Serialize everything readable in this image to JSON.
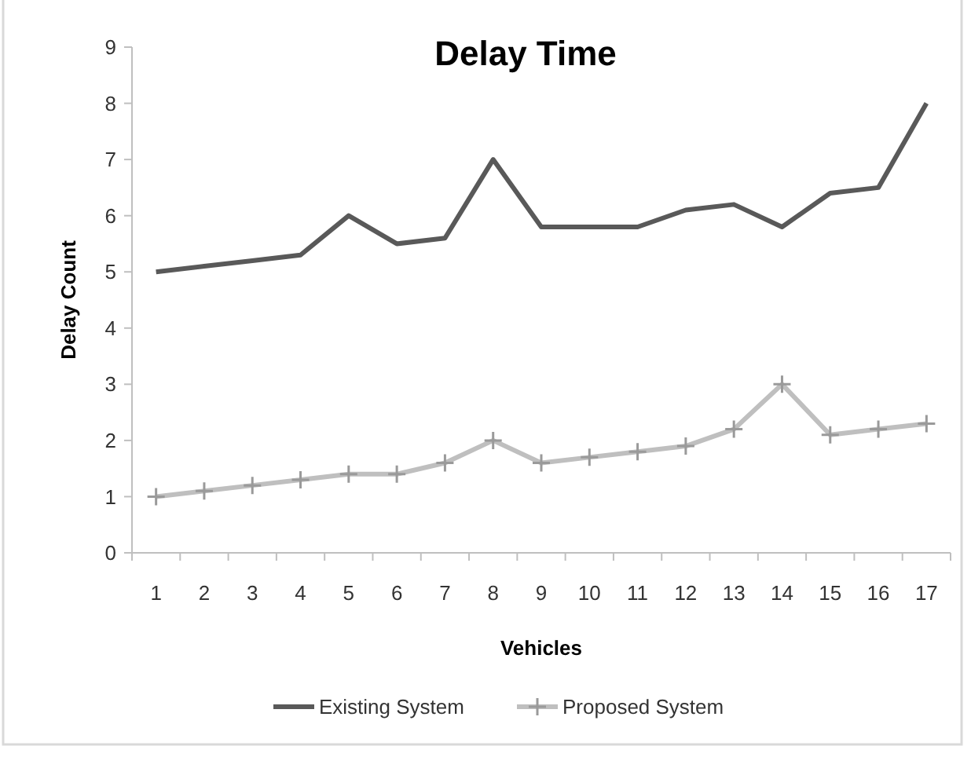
{
  "chart_data": {
    "type": "line",
    "title": "Delay Time",
    "xlabel": "Vehicles",
    "ylabel": "Delay Count",
    "categories": [
      "1",
      "2",
      "3",
      "4",
      "5",
      "6",
      "7",
      "8",
      "9",
      "10",
      "11",
      "12",
      "13",
      "14",
      "15",
      "16",
      "17"
    ],
    "series": [
      {
        "name": "Existing System",
        "color": "#595959",
        "marker": "none",
        "values": [
          5,
          5.1,
          5.2,
          5.3,
          6,
          5.5,
          5.6,
          7,
          5.8,
          5.8,
          5.8,
          6.1,
          6.2,
          5.8,
          6.4,
          6.5,
          8
        ]
      },
      {
        "name": "Proposed System",
        "color": "#bfbfbf",
        "marker": "cross",
        "values": [
          1,
          1.1,
          1.2,
          1.3,
          1.4,
          1.4,
          1.6,
          2,
          1.6,
          1.7,
          1.8,
          1.9,
          2.2,
          3,
          2.1,
          2.2,
          2.3
        ]
      }
    ],
    "ylim": [
      0,
      9
    ],
    "yticks": [
      0,
      1,
      2,
      3,
      4,
      5,
      6,
      7,
      8,
      9
    ],
    "grid": false,
    "legend": "bottom",
    "line_style": "solid"
  }
}
